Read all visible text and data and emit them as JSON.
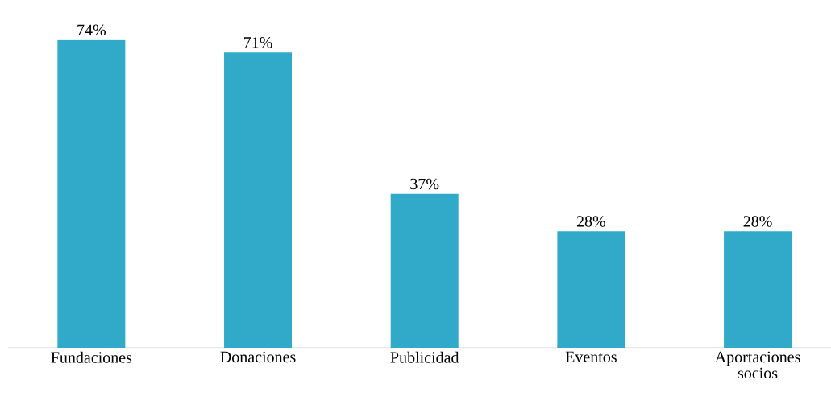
{
  "chart_data": {
    "type": "bar",
    "categories": [
      "Fundaciones",
      "Donaciones",
      "Publicidad",
      "Eventos",
      "Aportaciones socios"
    ],
    "values": [
      74,
      71,
      37,
      28,
      28
    ],
    "value_labels": [
      "74%",
      "71%",
      "37%",
      "28%",
      "28%"
    ],
    "color": "#31a9c9"
  }
}
